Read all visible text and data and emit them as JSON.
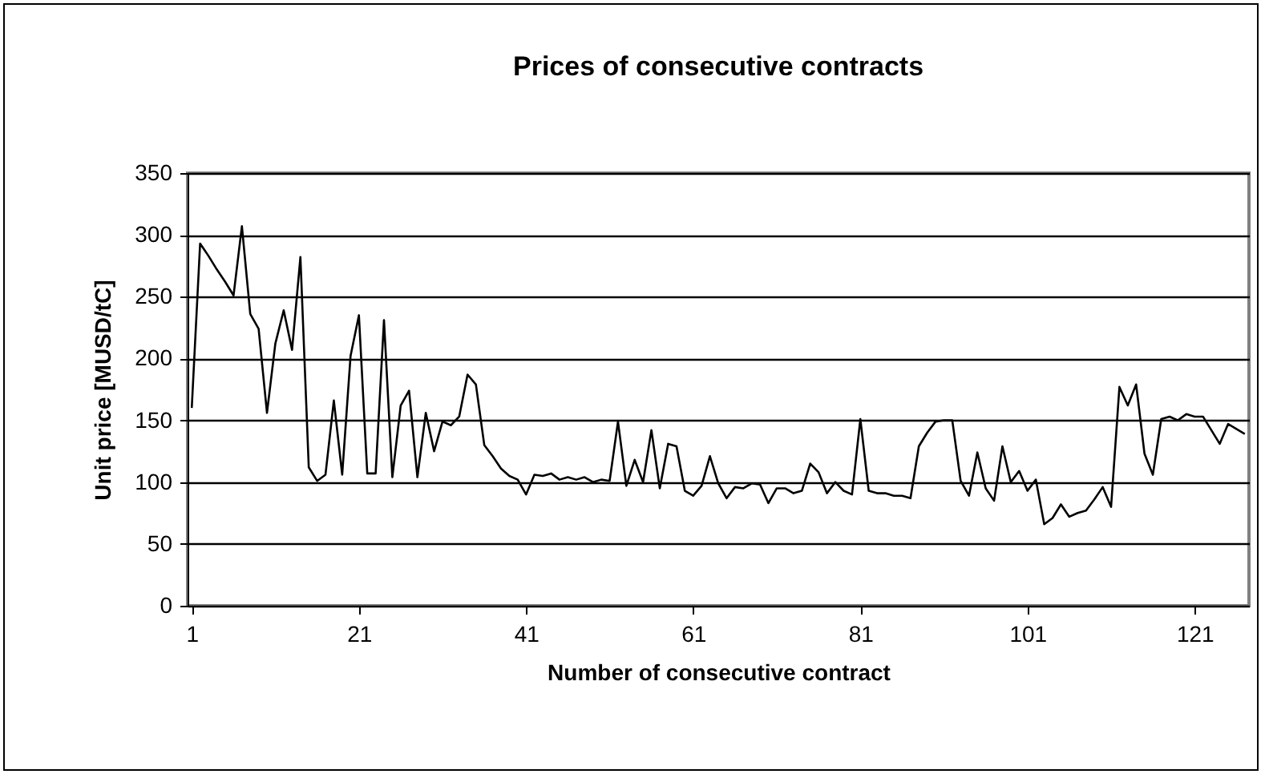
{
  "chart_data": {
    "type": "line",
    "title": "Prices of consecutive contracts",
    "xlabel": "Number of consecutive contract",
    "ylabel": "Unit price [MUSD/tC]",
    "x": [
      1,
      2,
      3,
      4,
      5,
      6,
      7,
      8,
      9,
      10,
      11,
      12,
      13,
      14,
      15,
      16,
      17,
      18,
      19,
      20,
      21,
      22,
      23,
      24,
      25,
      26,
      27,
      28,
      29,
      30,
      31,
      32,
      33,
      34,
      35,
      36,
      37,
      38,
      39,
      40,
      41,
      42,
      43,
      44,
      45,
      46,
      47,
      48,
      49,
      50,
      51,
      52,
      53,
      54,
      55,
      56,
      57,
      58,
      59,
      60,
      61,
      62,
      63,
      64,
      65,
      66,
      67,
      68,
      69,
      70,
      71,
      72,
      73,
      74,
      75,
      76,
      77,
      78,
      79,
      80,
      81,
      82,
      83,
      84,
      85,
      86,
      87,
      88,
      89,
      90,
      91,
      92,
      93,
      94,
      95,
      96,
      97,
      98,
      99,
      100,
      101,
      102,
      103,
      104,
      105,
      106,
      107,
      108,
      109,
      110,
      111,
      112,
      113,
      114,
      115,
      116,
      117,
      118,
      119,
      120,
      121,
      122,
      123,
      124,
      125,
      126,
      127
    ],
    "series": [
      {
        "color": "#000000",
        "values": [
          160,
          293,
          283,
          272,
          262,
          251,
          307,
          236,
          224,
          156,
          212,
          239,
          207,
          282,
          112,
          101,
          106,
          166,
          106,
          202,
          235,
          107,
          107,
          231,
          104,
          162,
          174,
          104,
          156,
          125,
          149,
          146,
          153,
          187,
          179,
          130,
          121,
          111,
          105,
          102,
          90,
          106,
          105,
          107,
          102,
          104,
          102,
          104,
          100,
          102,
          101,
          149,
          97,
          118,
          100,
          142,
          95,
          131,
          129,
          93,
          89,
          97,
          121,
          99,
          87,
          96,
          95,
          99,
          98,
          83,
          95,
          95,
          91,
          93,
          115,
          108,
          91,
          100,
          93,
          90,
          151,
          93,
          91,
          91,
          89,
          89,
          87,
          129,
          140,
          149,
          150,
          150,
          101,
          89,
          124,
          95,
          85,
          129,
          100,
          109,
          93,
          102,
          66,
          71,
          82,
          72,
          75,
          77,
          86,
          96,
          80,
          177,
          162,
          179,
          123,
          106,
          151,
          153,
          150,
          155,
          153,
          153,
          142,
          131,
          147,
          143,
          139
        ]
      }
    ],
    "xlim": [
      0.5,
      127.5
    ],
    "xticks": [
      1,
      21,
      41,
      61,
      81,
      101,
      121
    ],
    "ylim": [
      0,
      350
    ],
    "yticks": [
      0,
      50,
      100,
      150,
      200,
      250,
      300,
      350
    ],
    "grid": "y",
    "marker": "none",
    "line_style": "solid"
  }
}
